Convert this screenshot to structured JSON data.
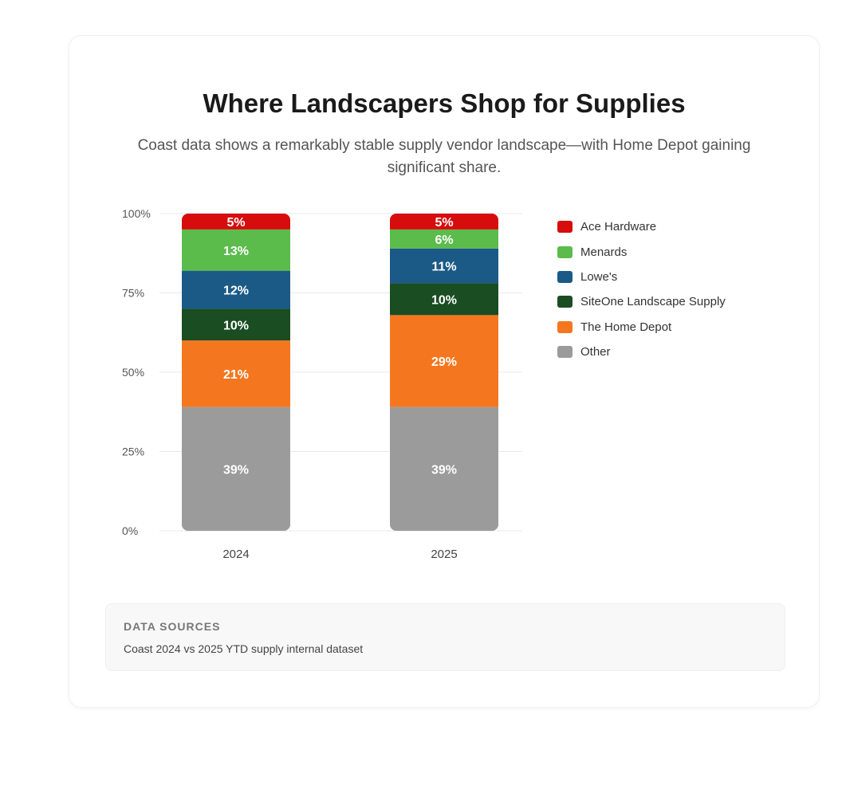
{
  "chart_data": {
    "type": "bar",
    "stacked": true,
    "title": "Where Landscapers Shop for Supplies",
    "subtitle": "Coast data shows a remarkably stable supply vendor landscape—with Home Depot gaining significant share.",
    "categories": [
      "2024",
      "2025"
    ],
    "series": [
      {
        "name": "Other",
        "color": "#9b9b9b",
        "values": [
          39,
          39
        ]
      },
      {
        "name": "The Home Depot",
        "color": "#f47720",
        "values": [
          21,
          29
        ]
      },
      {
        "name": "SiteOne Landscape Supply",
        "color": "#1a4d22",
        "values": [
          10,
          10
        ]
      },
      {
        "name": "Lowe's",
        "color": "#1b5a86",
        "values": [
          12,
          11
        ]
      },
      {
        "name": "Menards",
        "color": "#5bbc4c",
        "values": [
          13,
          6
        ]
      },
      {
        "name": "Ace Hardware",
        "color": "#d70c0c",
        "values": [
          5,
          5
        ]
      }
    ],
    "value_labels": [
      [
        "39%",
        "39%"
      ],
      [
        "21%",
        "29%"
      ],
      [
        "10%",
        "10%"
      ],
      [
        "12%",
        "11%"
      ],
      [
        "13%",
        "6%"
      ],
      [
        "5%",
        "5%"
      ]
    ],
    "legend_order": [
      "Ace Hardware",
      "Menards",
      "Lowe's",
      "SiteOne Landscape Supply",
      "The Home Depot",
      "Other"
    ],
    "yticks": [
      0,
      25,
      50,
      75,
      100
    ],
    "ytick_labels": [
      "0%",
      "25%",
      "50%",
      "75%",
      "100%"
    ],
    "ylim": [
      0,
      100
    ],
    "grid": true,
    "legend_position": "right"
  },
  "sources": {
    "heading": "DATA SOURCES",
    "text": "Coast 2024 vs 2025 YTD supply internal dataset"
  }
}
